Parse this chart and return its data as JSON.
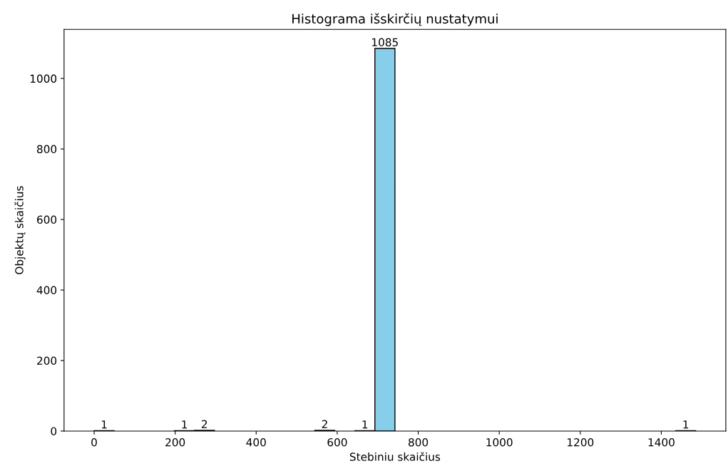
{
  "chart_data": {
    "type": "histogram",
    "title": "Histograma išskirčių nustatymui",
    "xlabel": "Stebiniu skaičius",
    "ylabel": "Objektų skaičius",
    "bins": [
      0,
      49.5,
      99,
      148.5,
      198,
      247.5,
      297,
      346.5,
      396,
      445.5,
      495,
      544.5,
      594,
      643.5,
      693,
      742.5,
      792,
      841.5,
      891,
      940.5,
      990,
      1039.5,
      1089,
      1138.5,
      1188,
      1237.5,
      1287,
      1336.5,
      1386,
      1435.5,
      1485
    ],
    "values": [
      1,
      0,
      0,
      0,
      1,
      2,
      0,
      0,
      0,
      0,
      0,
      2,
      0,
      1,
      1085,
      0,
      0,
      0,
      0,
      0,
      0,
      0,
      0,
      0,
      0,
      0,
      0,
      0,
      0,
      1
    ],
    "value_labels": [
      "1",
      null,
      null,
      null,
      "1",
      "2",
      null,
      null,
      null,
      null,
      null,
      "2",
      null,
      "1",
      "1085",
      null,
      null,
      null,
      null,
      null,
      null,
      null,
      null,
      null,
      null,
      null,
      null,
      null,
      null,
      "1"
    ],
    "color": "#87ceeb",
    "xlim": [
      -74.25,
      1559.25
    ],
    "ylim": [
      0,
      1139.25
    ],
    "xticks": [
      0,
      200,
      400,
      600,
      800,
      1000,
      1200,
      1400
    ],
    "yticks": [
      0,
      200,
      400,
      600,
      800,
      1000
    ],
    "grid": false,
    "legend": false
  }
}
